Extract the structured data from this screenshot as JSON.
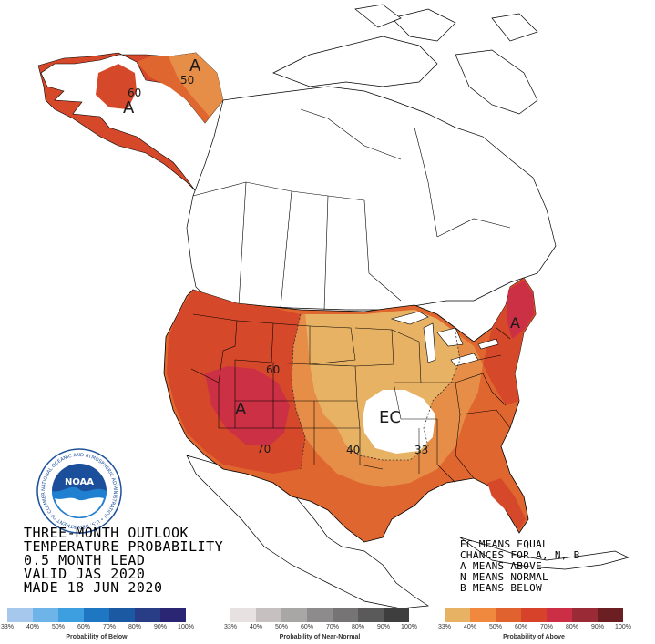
{
  "title_lines": [
    "THREE-MONTH OUTLOOK",
    "TEMPERATURE PROBABILITY",
    "0.5 MONTH LEAD",
    "VALID JAS 2020",
    "MADE 18 JUN 2020"
  ],
  "legend_notes": [
    "EC MEANS EQUAL",
    "CHANCES FOR A, N, B",
    "A MEANS ABOVE",
    "N MEANS NORMAL",
    "B MEANS BELOW"
  ],
  "map_labels": {
    "alaska_a1": "A",
    "alaska_a2": "A",
    "alaska_50": "50",
    "alaska_60": "60",
    "west_a": "A",
    "east_a": "A",
    "ec": "EC",
    "c60": "60",
    "c70": "70",
    "c40": "40",
    "c33": "33"
  },
  "logo": {
    "text": "NOAA",
    "ring_text": "NATIONAL OCEANIC AND ATMOSPHERIC ADMINISTRATION • U.S. DEPARTMENT OF COMMERCE"
  },
  "scales": {
    "below": {
      "title": "Probability of Below",
      "ticks": [
        "33%",
        "40%",
        "50%",
        "60%",
        "70%",
        "80%",
        "90%",
        "100%"
      ],
      "colors": [
        "#a6c8ec",
        "#6fb4e8",
        "#3d9ee0",
        "#1f77c4",
        "#1b5aa3",
        "#283d85",
        "#2b2673"
      ]
    },
    "normal": {
      "title": "Probability of Near-Normal",
      "ticks": [
        "33%",
        "40%",
        "50%",
        "60%",
        "70%",
        "80%",
        "90%",
        "100%"
      ],
      "colors": [
        "#e8e1e1",
        "#c6c0c0",
        "#a9a6a6",
        "#8d8b8b",
        "#767474",
        "#5b5a5a",
        "#3f3e3e"
      ]
    },
    "above": {
      "title": "Probability of Above",
      "ticks": [
        "33%",
        "40%",
        "50%",
        "60%",
        "70%",
        "80%",
        "90%",
        "100%"
      ],
      "colors": [
        "#e8b265",
        "#f0893e",
        "#e0622e",
        "#d7432a",
        "#cc2f45",
        "#9a2a36",
        "#6b1f22"
      ]
    }
  },
  "colors": {
    "c33": "#e8b265",
    "c40": "#e68d47",
    "c50": "#e0662f",
    "c60": "#d6482a",
    "c70": "#cb3044",
    "logo_blue": "#1c4f9b",
    "logo_sky": "#1f7fd0"
  }
}
